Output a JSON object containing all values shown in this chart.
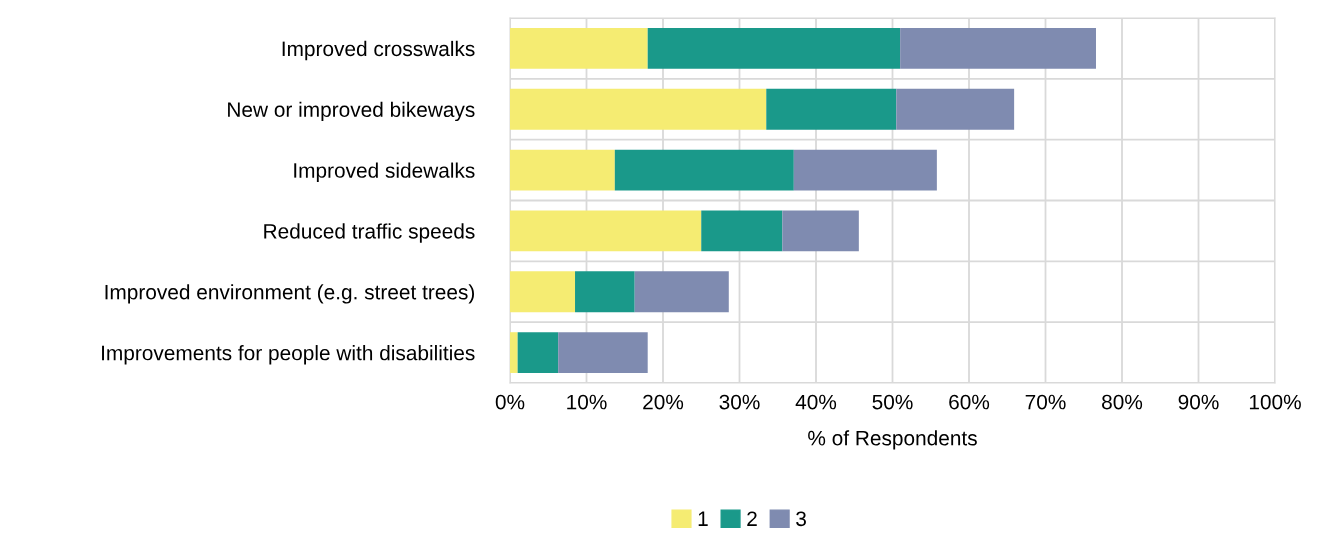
{
  "chart_data": {
    "type": "bar",
    "orientation": "horizontal",
    "stacked": true,
    "categories": [
      "Improved crosswalks",
      "New or improved bikeways",
      "Improved sidewalks",
      "Reduced traffic speeds",
      "Improved environment (e.g. street trees)",
      "Improvements for people with disabilities"
    ],
    "series": [
      {
        "name": "1",
        "color": "#f5ec72",
        "values": [
          18.0,
          33.5,
          13.7,
          25.0,
          8.5,
          1.0
        ]
      },
      {
        "name": "2",
        "color": "#1a998a",
        "values": [
          33.0,
          17.0,
          23.4,
          10.6,
          7.8,
          5.3
        ]
      },
      {
        "name": "3",
        "color": "#7f8bb0",
        "values": [
          25.6,
          15.4,
          18.7,
          10.0,
          12.3,
          11.7
        ]
      }
    ],
    "xlabel": "% of Respondents",
    "xlim": [
      0,
      100
    ],
    "xticks": [
      {
        "value": 0,
        "label": "0%"
      },
      {
        "value": 10,
        "label": "10%"
      },
      {
        "value": 20,
        "label": "20%"
      },
      {
        "value": 30,
        "label": "30%"
      },
      {
        "value": 40,
        "label": "40%"
      },
      {
        "value": 50,
        "label": "50%"
      },
      {
        "value": 60,
        "label": "60%"
      },
      {
        "value": 70,
        "label": "70%"
      },
      {
        "value": 80,
        "label": "80%"
      },
      {
        "value": 90,
        "label": "90%"
      },
      {
        "value": 100,
        "label": "100%"
      }
    ],
    "grid": true,
    "legend": "bottom"
  }
}
